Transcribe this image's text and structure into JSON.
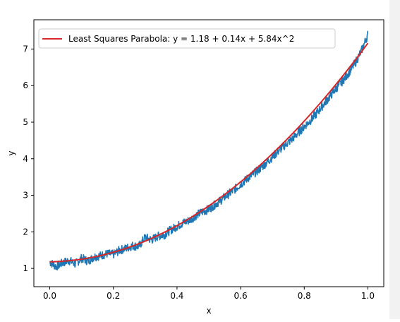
{
  "chart_data": {
    "type": "line",
    "title": "",
    "xlabel": "x",
    "ylabel": "y",
    "xlim": [
      -0.05,
      1.05
    ],
    "ylim": [
      0.5,
      7.8
    ],
    "xticks": [
      0.0,
      0.2,
      0.4,
      0.6,
      0.8,
      1.0
    ],
    "xtick_labels": [
      "0.0",
      "0.2",
      "0.4",
      "0.6",
      "0.8",
      "1.0"
    ],
    "yticks": [
      1,
      2,
      3,
      4,
      5,
      6,
      7
    ],
    "ytick_labels": [
      "1",
      "2",
      "3",
      "4",
      "5",
      "6",
      "7"
    ],
    "grid": false,
    "legend_placement": "upper-left",
    "series": [
      {
        "name": "",
        "color": "#1f77b4",
        "style": "noisy line",
        "x": [
          0.0,
          0.02,
          0.04,
          0.06,
          0.08,
          0.1,
          0.12,
          0.14,
          0.16,
          0.18,
          0.2,
          0.22,
          0.24,
          0.26,
          0.28,
          0.3,
          0.32,
          0.34,
          0.36,
          0.38,
          0.4,
          0.42,
          0.44,
          0.46,
          0.48,
          0.5,
          0.52,
          0.54,
          0.56,
          0.58,
          0.6,
          0.62,
          0.64,
          0.66,
          0.68,
          0.7,
          0.72,
          0.74,
          0.76,
          0.78,
          0.8,
          0.82,
          0.84,
          0.86,
          0.88,
          0.9,
          0.92,
          0.94,
          0.96,
          0.98,
          1.0
        ],
        "y": [
          1.18,
          1.05,
          1.15,
          1.22,
          1.12,
          1.28,
          1.2,
          1.32,
          1.35,
          1.4,
          1.38,
          1.5,
          1.55,
          1.62,
          1.6,
          1.85,
          1.78,
          1.88,
          1.92,
          2.05,
          2.15,
          2.25,
          2.32,
          2.45,
          2.55,
          2.62,
          2.75,
          2.88,
          3.02,
          3.15,
          3.3,
          3.45,
          3.58,
          3.72,
          3.88,
          4.05,
          4.22,
          4.38,
          4.52,
          4.7,
          4.88,
          5.05,
          5.25,
          5.48,
          5.7,
          5.92,
          6.12,
          6.35,
          6.62,
          6.95,
          7.4
        ]
      },
      {
        "name": "Least Squares Parabola: y = 1.18 + 0.14x + 5.84x^2",
        "color": "#d62728",
        "style": "fit line",
        "coefficients": [
          1.18,
          0.14,
          5.84
        ]
      }
    ]
  }
}
